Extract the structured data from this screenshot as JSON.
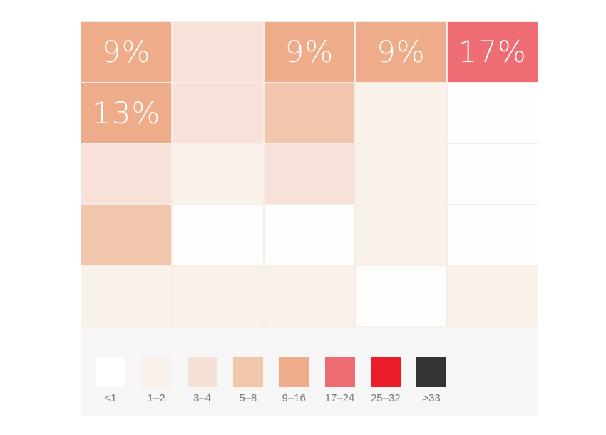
{
  "chart_data": {
    "type": "heatmap",
    "rows": 5,
    "cols": 5,
    "cells": [
      [
        {
          "level": "9-16",
          "label": "9%"
        },
        {
          "level": "3-4",
          "label": ""
        },
        {
          "level": "9-16",
          "label": "9%"
        },
        {
          "level": "9-16",
          "label": "9%"
        },
        {
          "level": "17-24",
          "label": "17%"
        }
      ],
      [
        {
          "level": "9-16",
          "label": "13%"
        },
        {
          "level": "3-4",
          "label": ""
        },
        {
          "level": "5-8",
          "label": ""
        },
        {
          "level": "1-2",
          "label": ""
        },
        {
          "level": "<1",
          "label": ""
        }
      ],
      [
        {
          "level": "3-4",
          "label": ""
        },
        {
          "level": "1-2",
          "label": ""
        },
        {
          "level": "3-4",
          "label": ""
        },
        {
          "level": "1-2",
          "label": ""
        },
        {
          "level": "<1",
          "label": ""
        }
      ],
      [
        {
          "level": "5-8",
          "label": ""
        },
        {
          "level": "<1",
          "label": ""
        },
        {
          "level": "<1",
          "label": ""
        },
        {
          "level": "1-2",
          "label": ""
        },
        {
          "level": "<1",
          "label": ""
        }
      ],
      [
        {
          "level": "1-2",
          "label": ""
        },
        {
          "level": "1-2",
          "label": ""
        },
        {
          "level": "1-2",
          "label": ""
        },
        {
          "level": "<1",
          "label": ""
        },
        {
          "level": "1-2",
          "label": ""
        }
      ]
    ],
    "legend": [
      {
        "label": "<1",
        "color": "#ffffff"
      },
      {
        "label": "1–2",
        "color": "#faf2ea"
      },
      {
        "label": "3–4",
        "color": "#f6e1d6"
      },
      {
        "label": "5–8",
        "color": "#f2c6ab"
      },
      {
        "label": "9–16",
        "color": "#eeac8a"
      },
      {
        "label": "17–24",
        "color": "#ee6c74"
      },
      {
        "label": "25–32",
        "color": "#ea1c2a"
      },
      {
        "label": ">33",
        "color": "#333333"
      }
    ],
    "level_colors": {
      "<1": "#fefefd",
      "1-2": "#f8f2eb",
      "3-4": "#f7e1d8",
      "5-8": "#f2c6ad",
      "9-16": "#eeac8a",
      "17-24": "#ee6c74"
    },
    "grid_line_color": "#f7ece7"
  }
}
